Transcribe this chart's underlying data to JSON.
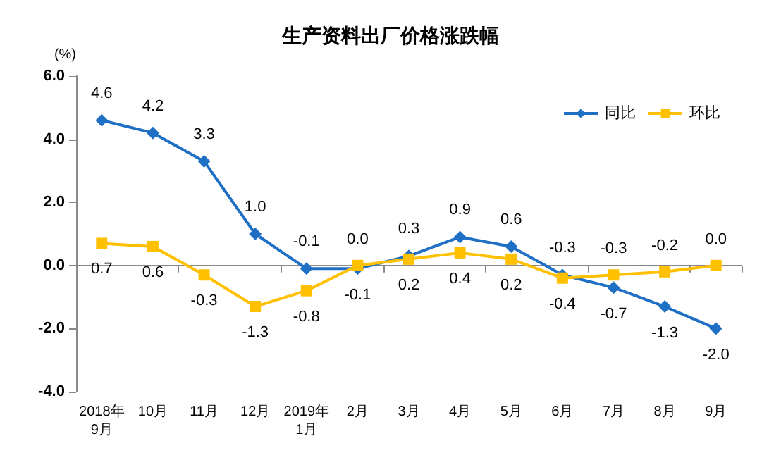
{
  "chart_data": {
    "type": "line",
    "title": "生产资料出厂价格涨跌幅",
    "ylabel": "(%)",
    "categories": [
      "2018年\n9月",
      "10月",
      "11月",
      "12月",
      "2019年\n1月",
      "2月",
      "3月",
      "4月",
      "5月",
      "6月",
      "7月",
      "8月",
      "9月"
    ],
    "series": [
      {
        "name": "同比",
        "color": "#1f6fc5",
        "marker": "diamond",
        "values": [
          4.6,
          4.2,
          3.3,
          1.0,
          -0.1,
          -0.1,
          0.3,
          0.9,
          0.6,
          -0.3,
          -0.7,
          -1.3,
          -2.0
        ],
        "value_labels": [
          "4.6",
          "4.2",
          "3.3",
          "1.0",
          "-0.1",
          "-0.1",
          "0.3",
          "0.9",
          "0.6",
          "-0.3",
          "-0.7",
          "-1.3",
          "-2.0"
        ]
      },
      {
        "name": "环比",
        "color": "#ffc000",
        "marker": "square",
        "values": [
          0.7,
          0.6,
          -0.3,
          -1.3,
          -0.8,
          0.0,
          0.2,
          0.4,
          0.2,
          -0.4,
          -0.3,
          -0.2,
          0.0
        ],
        "value_labels": [
          "0.7",
          "0.6",
          "-0.3",
          "-1.3",
          "-0.8",
          "0.0",
          "0.2",
          "0.4",
          "0.2",
          "-0.4",
          "-0.3",
          "-0.2",
          "0.0"
        ]
      }
    ],
    "ylim": [
      -4,
      6
    ],
    "yticks": [
      {
        "value": -4,
        "label": "-4.0"
      },
      {
        "value": -2,
        "label": "-2.0"
      },
      {
        "value": 0,
        "label": "0.0"
      },
      {
        "value": 2,
        "label": "2.0"
      },
      {
        "value": 4,
        "label": "4.0"
      },
      {
        "value": 6,
        "label": "6.0"
      }
    ],
    "legend": "top right",
    "line_style": "solid"
  }
}
